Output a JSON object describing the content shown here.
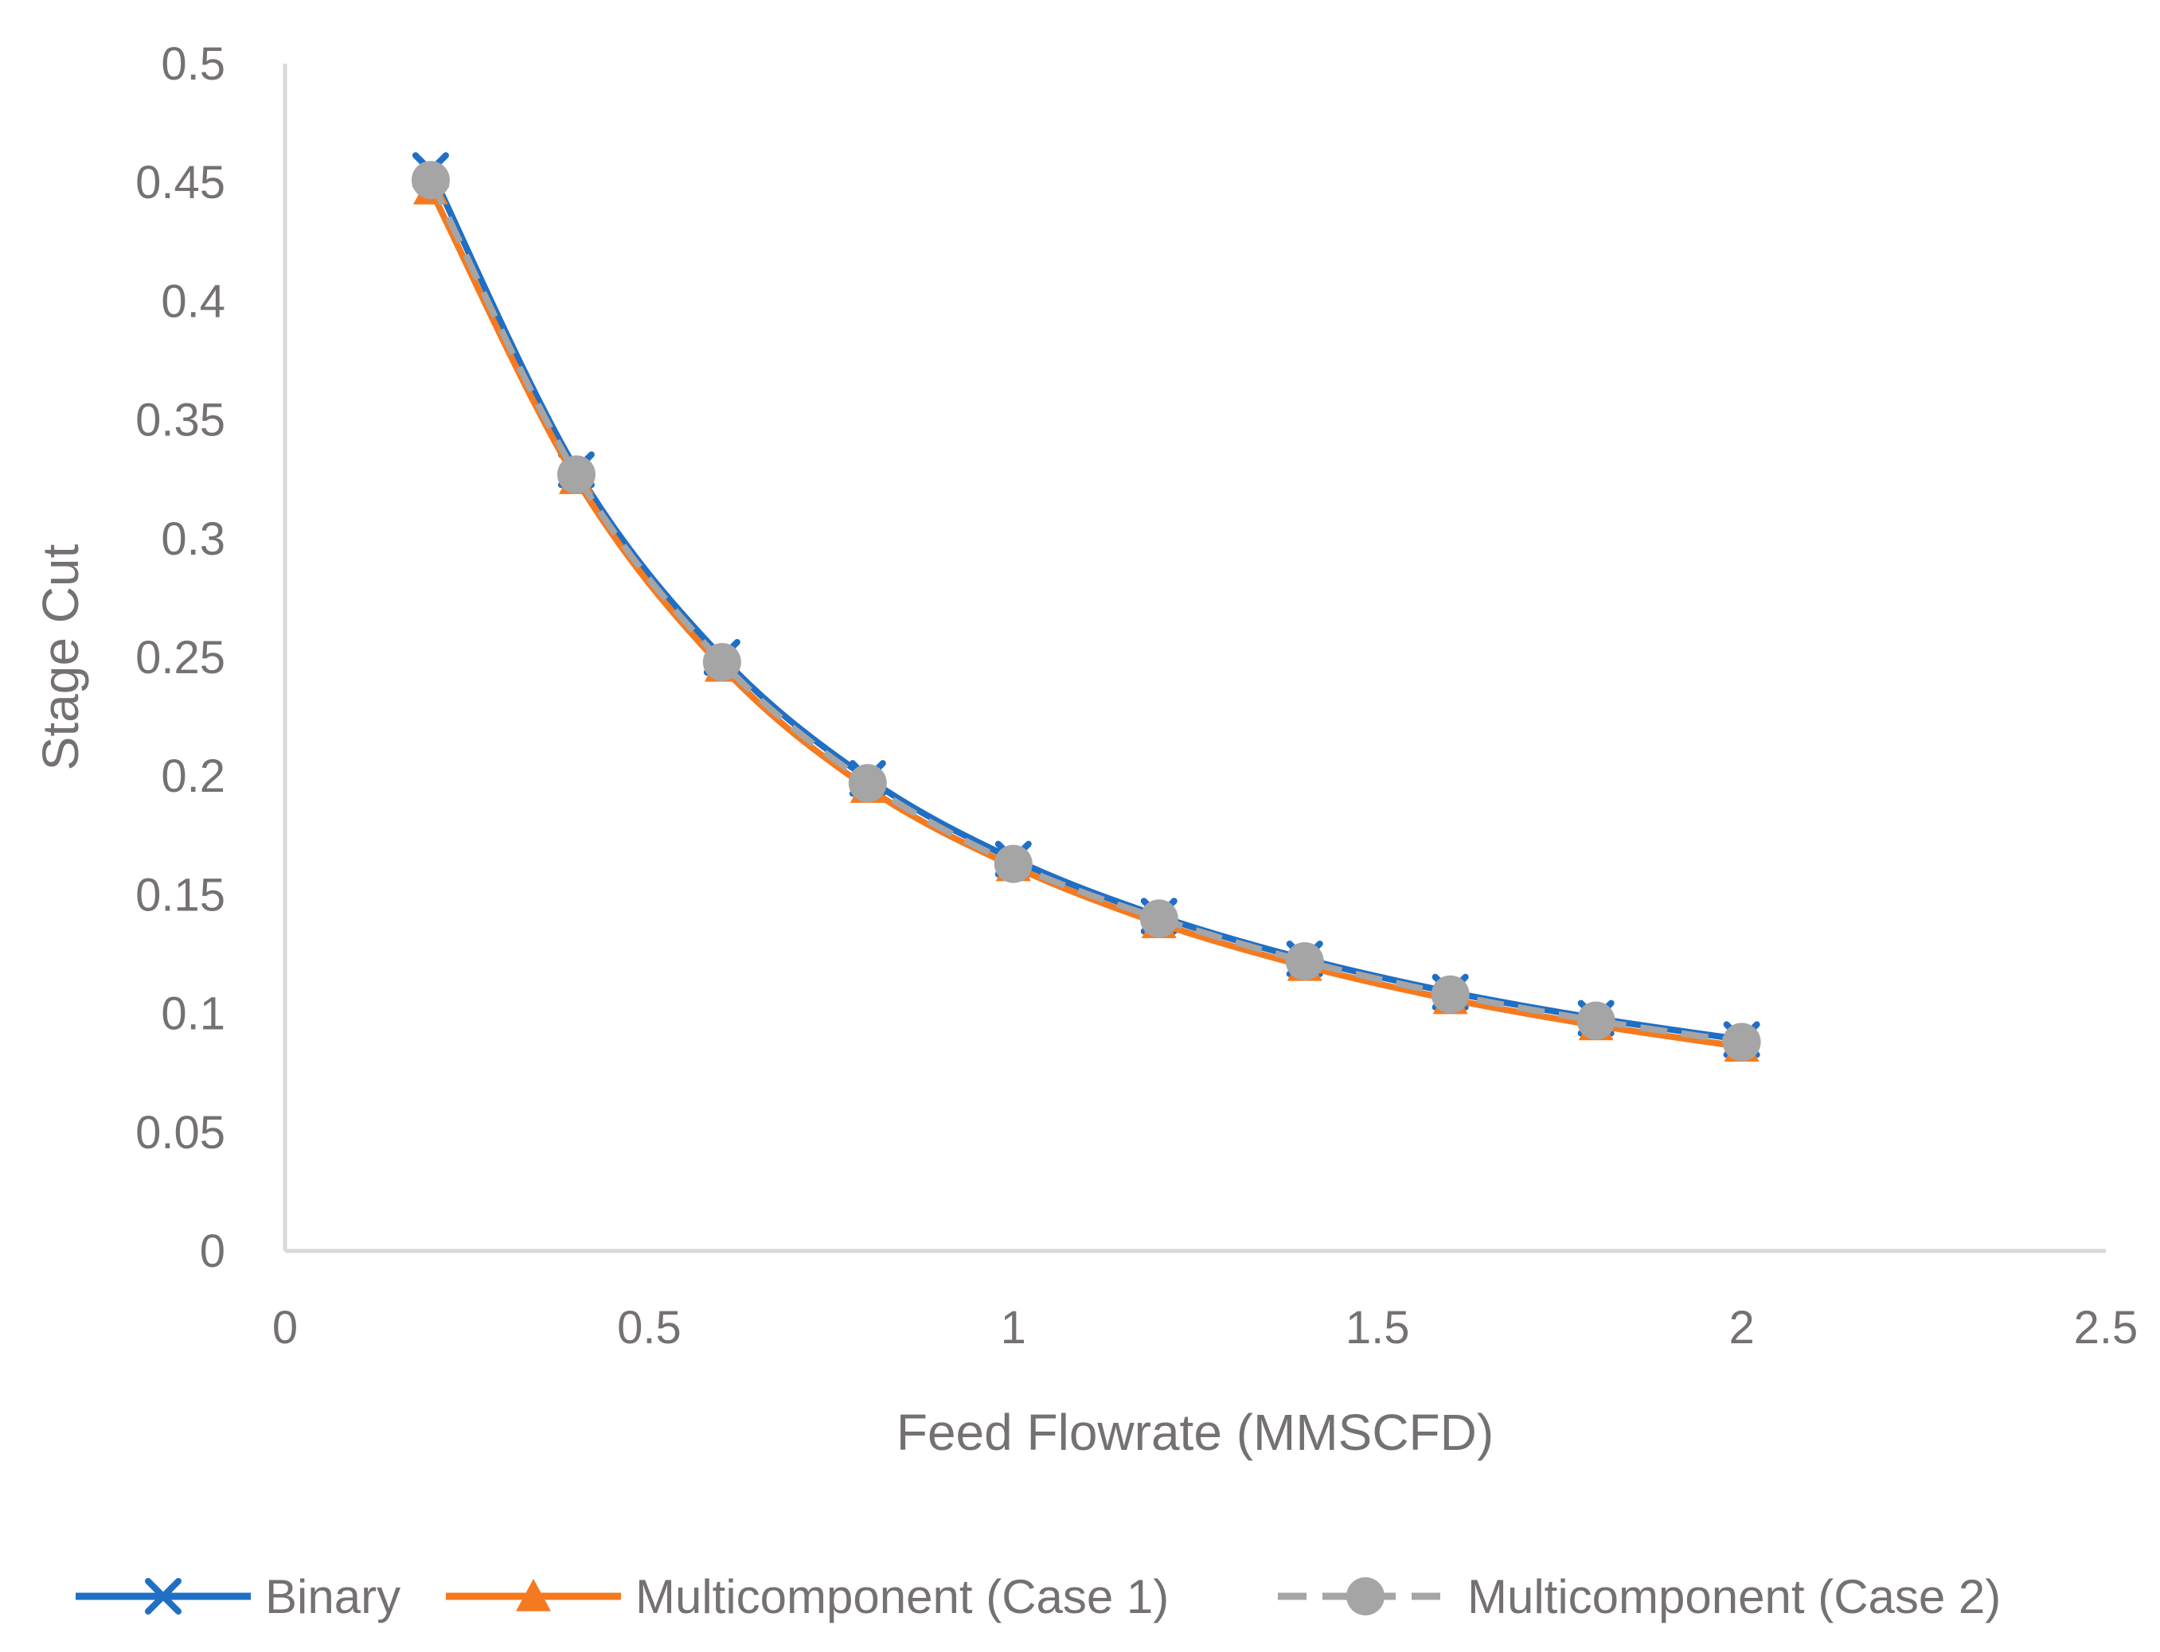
{
  "chart_data": {
    "type": "line",
    "title": "",
    "xlabel": "Feed Flowrate (MMSCFD)",
    "ylabel": "Stage Cut",
    "xlim": [
      0,
      2.5
    ],
    "ylim": [
      0,
      0.5
    ],
    "xticks": [
      0,
      0.5,
      1,
      1.5,
      2,
      2.5
    ],
    "xtick_labels": [
      "0",
      "0.5",
      "1",
      "1.5",
      "2",
      "2.5"
    ],
    "yticks": [
      0,
      0.05,
      0.1,
      0.15,
      0.2,
      0.25,
      0.3,
      0.35,
      0.4,
      0.45,
      0.5
    ],
    "ytick_labels": [
      "0",
      "0.05",
      "0.1",
      "0.15",
      "0.2",
      "0.25",
      "0.3",
      "0.35",
      "0.4",
      "0.45",
      "0.5"
    ],
    "grid": false,
    "legend_position": "bottom",
    "x": [
      0.2,
      0.4,
      0.6,
      0.8,
      1.0,
      1.2,
      1.4,
      1.6,
      1.8,
      2.0
    ],
    "series": [
      {
        "name": "Binary",
        "color": "#1F6FC5",
        "marker": "x",
        "line_style": "solid",
        "values": [
          0.455,
          0.329,
          0.25,
          0.199,
          0.165,
          0.141,
          0.123,
          0.109,
          0.098,
          0.089
        ]
      },
      {
        "name": "Multicomponent (Case 1)",
        "color": "#F47A20",
        "marker": "triangle",
        "line_style": "solid",
        "values": [
          0.447,
          0.325,
          0.246,
          0.195,
          0.162,
          0.138,
          0.12,
          0.106,
          0.095,
          0.086
        ]
      },
      {
        "name": "Multicomponent (Case 2)",
        "color": "#A5A5A5",
        "marker": "circle",
        "line_style": "dashed",
        "values": [
          0.451,
          0.327,
          0.248,
          0.197,
          0.163,
          0.14,
          0.122,
          0.108,
          0.097,
          0.088
        ]
      }
    ]
  }
}
